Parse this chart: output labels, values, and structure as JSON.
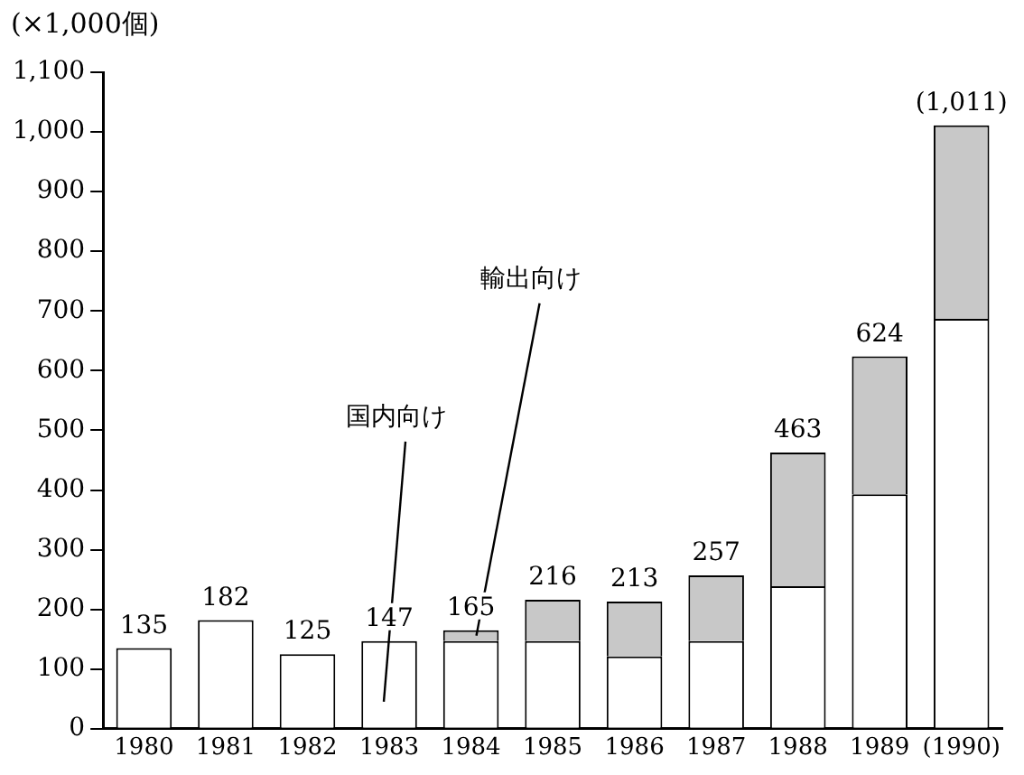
{
  "chart_data": {
    "type": "bar",
    "stacked": true,
    "ylabel": "(×1,000個)",
    "categories": [
      "1980",
      "1981",
      "1982",
      "1983",
      "1984",
      "1985",
      "1986",
      "1987",
      "1988",
      "1989",
      "(1990)"
    ],
    "series": [
      {
        "name": "国内向け",
        "color": "#ffffff",
        "values": [
          135,
          182,
          125,
          147,
          147,
          147,
          121,
          147,
          239,
          393,
          687
        ]
      },
      {
        "name": "輸出向け",
        "color": "#c8c8c8",
        "values": [
          null,
          null,
          null,
          null,
          18,
          69,
          92,
          110,
          224,
          231,
          324
        ]
      }
    ],
    "totals": [
      "135",
      "182",
      "125",
      "147",
      "165",
      "216",
      "213",
      "257",
      "463",
      "624",
      "(1,011)"
    ],
    "ylim": [
      0,
      1100
    ],
    "yticks": [
      0,
      100,
      200,
      300,
      400,
      500,
      600,
      700,
      800,
      900,
      {
        "value": 1000,
        "label": "1,000"
      },
      {
        "value": 1100,
        "label": "1,100"
      }
    ],
    "grid": false,
    "legend": false
  }
}
